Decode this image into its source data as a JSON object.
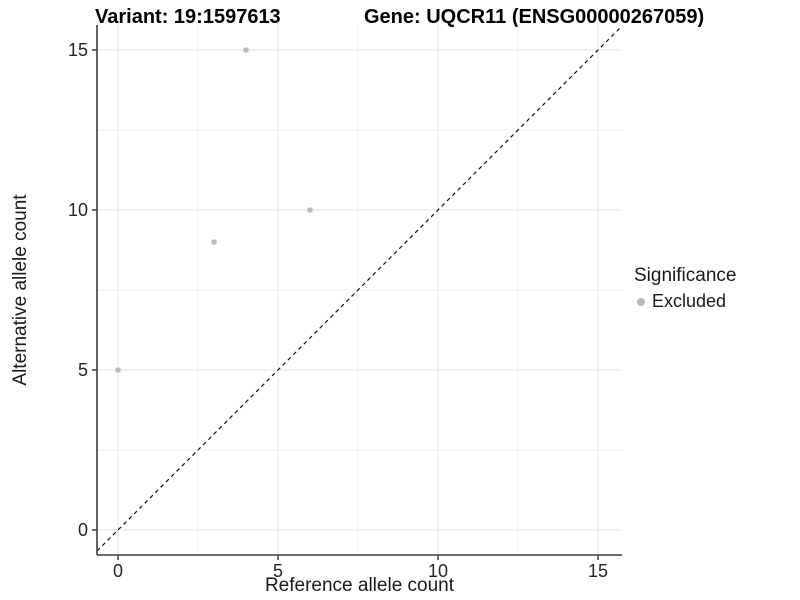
{
  "chart_data": {
    "type": "scatter",
    "title_left": "Variant: 19:1597613",
    "title_right": "Gene: UQCR11 (ENSG00000267059)",
    "xlabel": "Reference allele count",
    "ylabel": "Alternative allele count",
    "xlim": [
      -0.66,
      15.75
    ],
    "ylim": [
      -0.78,
      15.78
    ],
    "x_ticks": [
      0,
      5,
      10,
      15
    ],
    "y_ticks": [
      0,
      5,
      10,
      15
    ],
    "x_minor_ticks": [
      2.5,
      7.5,
      12.5
    ],
    "y_minor_ticks": [
      2.5,
      7.5,
      12.5
    ],
    "grid": "on",
    "points": [
      {
        "x": 0,
        "y": 5
      },
      {
        "x": 3,
        "y": 9
      },
      {
        "x": 4,
        "y": 15
      },
      {
        "x": 6,
        "y": 10
      }
    ],
    "abline": {
      "slope": 1,
      "intercept": 0,
      "style": "dashed"
    },
    "legend": {
      "position": "right",
      "title": "Significance",
      "items": [
        {
          "label": "Excluded",
          "color": "#b9b9b9"
        }
      ]
    },
    "colors": {
      "point": "#bdbdbd",
      "dashed_line": "#111111",
      "axis_line": "#3c3c3c",
      "tick_mark": "#333333",
      "tick_label": "#262626",
      "grid_major": "#e4e4e4",
      "grid_minor": "#f1f1f1",
      "background": "#ffffff"
    }
  }
}
